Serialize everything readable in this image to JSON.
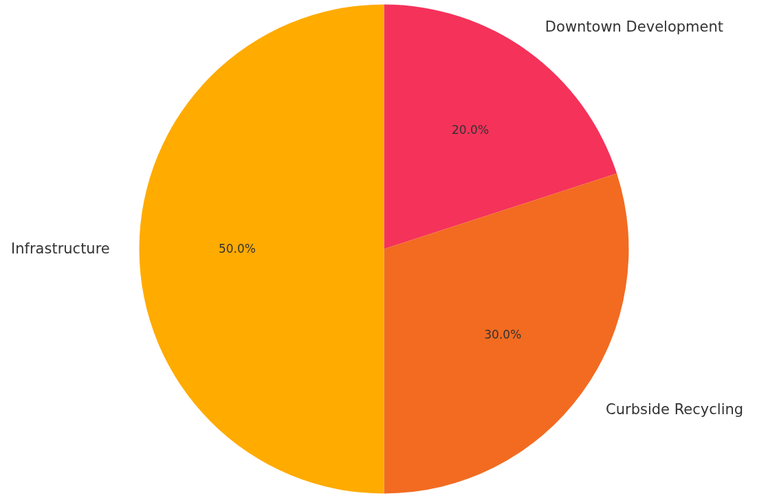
{
  "chart_data": {
    "type": "pie",
    "categories": [
      "Downtown Development",
      "Curbside Recycling",
      "Infrastructure"
    ],
    "values": [
      20,
      30,
      50
    ],
    "colors": [
      "#f5325a",
      "#f26b21",
      "#ffab00"
    ],
    "value_labels": [
      "20.0%",
      "30.0%",
      "50.0%"
    ]
  }
}
